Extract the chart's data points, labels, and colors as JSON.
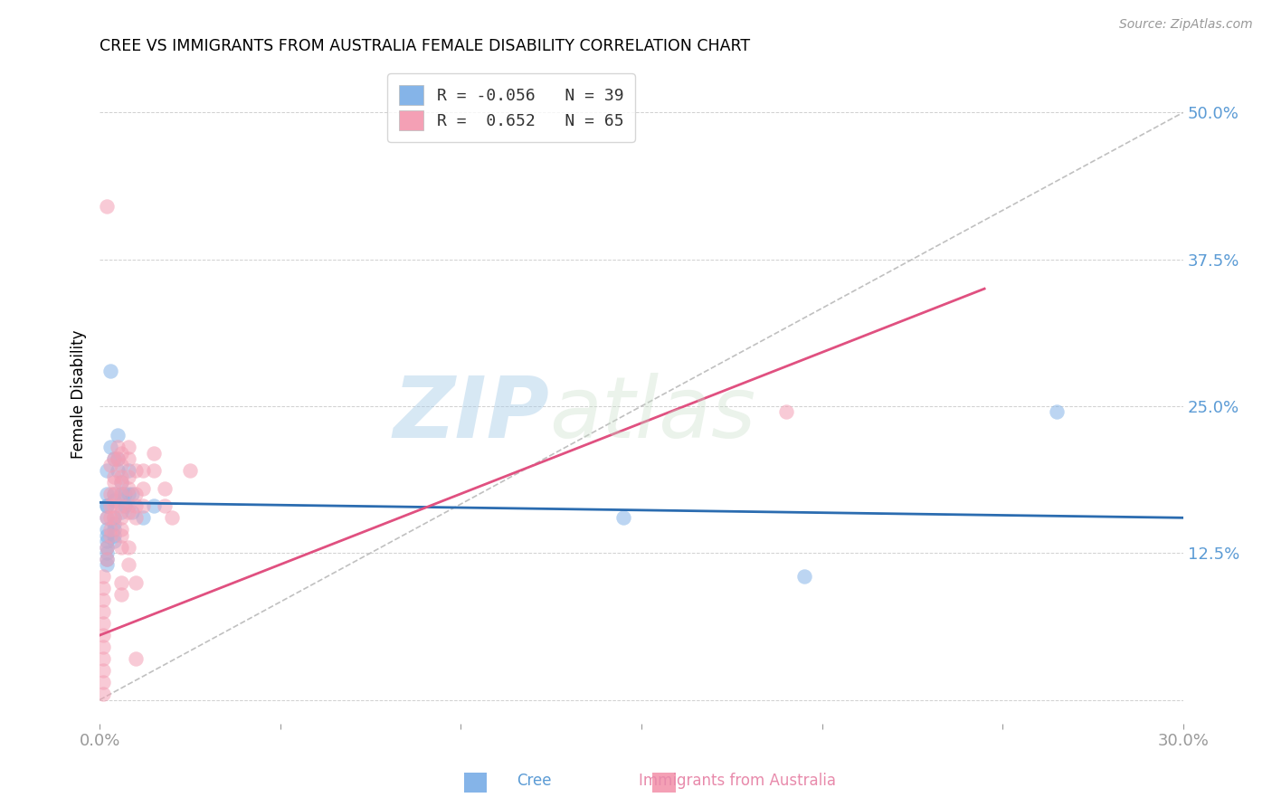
{
  "title": "CREE VS IMMIGRANTS FROM AUSTRALIA FEMALE DISABILITY CORRELATION CHART",
  "source": "Source: ZipAtlas.com",
  "ylabel": "Female Disability",
  "xlim": [
    0.0,
    0.3
  ],
  "ylim": [
    -0.02,
    0.54
  ],
  "yticks": [
    0.0,
    0.125,
    0.25,
    0.375,
    0.5
  ],
  "ytick_labels": [
    "",
    "12.5%",
    "25.0%",
    "37.5%",
    "50.0%"
  ],
  "xticks": [
    0.0,
    0.05,
    0.1,
    0.15,
    0.2,
    0.25,
    0.3
  ],
  "xtick_labels": [
    "0.0%",
    "",
    "",
    "",
    "",
    "",
    "30.0%"
  ],
  "cree_color": "#85b4e8",
  "aus_color": "#f4a0b5",
  "cree_line_color": "#2b6cb0",
  "aus_line_color": "#e05080",
  "ref_line_color": "#c0c0c0",
  "watermark_zip": "ZIP",
  "watermark_atlas": "atlas",
  "cree_scatter": [
    [
      0.002,
      0.195
    ],
    [
      0.002,
      0.175
    ],
    [
      0.002,
      0.165
    ],
    [
      0.002,
      0.155
    ],
    [
      0.002,
      0.145
    ],
    [
      0.002,
      0.14
    ],
    [
      0.002,
      0.135
    ],
    [
      0.002,
      0.13
    ],
    [
      0.002,
      0.125
    ],
    [
      0.002,
      0.12
    ],
    [
      0.002,
      0.115
    ],
    [
      0.002,
      0.165
    ],
    [
      0.003,
      0.28
    ],
    [
      0.003,
      0.215
    ],
    [
      0.004,
      0.205
    ],
    [
      0.004,
      0.175
    ],
    [
      0.004,
      0.17
    ],
    [
      0.004,
      0.155
    ],
    [
      0.004,
      0.15
    ],
    [
      0.004,
      0.145
    ],
    [
      0.004,
      0.14
    ],
    [
      0.004,
      0.135
    ],
    [
      0.005,
      0.225
    ],
    [
      0.005,
      0.205
    ],
    [
      0.005,
      0.195
    ],
    [
      0.006,
      0.185
    ],
    [
      0.006,
      0.175
    ],
    [
      0.006,
      0.16
    ],
    [
      0.007,
      0.175
    ],
    [
      0.007,
      0.165
    ],
    [
      0.008,
      0.195
    ],
    [
      0.008,
      0.175
    ],
    [
      0.009,
      0.175
    ],
    [
      0.009,
      0.16
    ],
    [
      0.012,
      0.155
    ],
    [
      0.015,
      0.165
    ],
    [
      0.145,
      0.155
    ],
    [
      0.195,
      0.105
    ],
    [
      0.265,
      0.245
    ]
  ],
  "aus_scatter": [
    [
      0.001,
      0.105
    ],
    [
      0.001,
      0.095
    ],
    [
      0.001,
      0.085
    ],
    [
      0.001,
      0.075
    ],
    [
      0.001,
      0.065
    ],
    [
      0.001,
      0.055
    ],
    [
      0.001,
      0.045
    ],
    [
      0.001,
      0.035
    ],
    [
      0.001,
      0.025
    ],
    [
      0.001,
      0.015
    ],
    [
      0.001,
      0.005
    ],
    [
      0.002,
      0.155
    ],
    [
      0.002,
      0.13
    ],
    [
      0.002,
      0.12
    ],
    [
      0.002,
      0.42
    ],
    [
      0.003,
      0.2
    ],
    [
      0.003,
      0.175
    ],
    [
      0.003,
      0.165
    ],
    [
      0.003,
      0.155
    ],
    [
      0.003,
      0.145
    ],
    [
      0.003,
      0.14
    ],
    [
      0.004,
      0.205
    ],
    [
      0.004,
      0.19
    ],
    [
      0.004,
      0.185
    ],
    [
      0.004,
      0.175
    ],
    [
      0.004,
      0.165
    ],
    [
      0.004,
      0.155
    ],
    [
      0.005,
      0.215
    ],
    [
      0.005,
      0.205
    ],
    [
      0.006,
      0.21
    ],
    [
      0.006,
      0.2
    ],
    [
      0.006,
      0.19
    ],
    [
      0.006,
      0.185
    ],
    [
      0.006,
      0.175
    ],
    [
      0.006,
      0.165
    ],
    [
      0.006,
      0.155
    ],
    [
      0.006,
      0.145
    ],
    [
      0.006,
      0.14
    ],
    [
      0.006,
      0.13
    ],
    [
      0.006,
      0.1
    ],
    [
      0.006,
      0.09
    ],
    [
      0.008,
      0.215
    ],
    [
      0.008,
      0.205
    ],
    [
      0.008,
      0.19
    ],
    [
      0.008,
      0.18
    ],
    [
      0.008,
      0.165
    ],
    [
      0.008,
      0.16
    ],
    [
      0.008,
      0.13
    ],
    [
      0.008,
      0.115
    ],
    [
      0.01,
      0.195
    ],
    [
      0.01,
      0.175
    ],
    [
      0.01,
      0.165
    ],
    [
      0.01,
      0.155
    ],
    [
      0.01,
      0.1
    ],
    [
      0.01,
      0.035
    ],
    [
      0.012,
      0.195
    ],
    [
      0.012,
      0.18
    ],
    [
      0.012,
      0.165
    ],
    [
      0.015,
      0.21
    ],
    [
      0.015,
      0.195
    ],
    [
      0.018,
      0.18
    ],
    [
      0.018,
      0.165
    ],
    [
      0.02,
      0.155
    ],
    [
      0.025,
      0.195
    ],
    [
      0.19,
      0.245
    ]
  ],
  "figsize": [
    14.06,
    8.92
  ],
  "dpi": 100,
  "cree_line": {
    "x0": 0.0,
    "x1": 0.3,
    "y0": 0.168,
    "y1": 0.155
  },
  "aus_line": {
    "x0": 0.0,
    "x1": 0.245,
    "y0": 0.055,
    "y1": 0.35
  },
  "ref_line": {
    "x0": 0.0,
    "x1": 0.3,
    "y0": 0.0,
    "y1": 0.5
  }
}
